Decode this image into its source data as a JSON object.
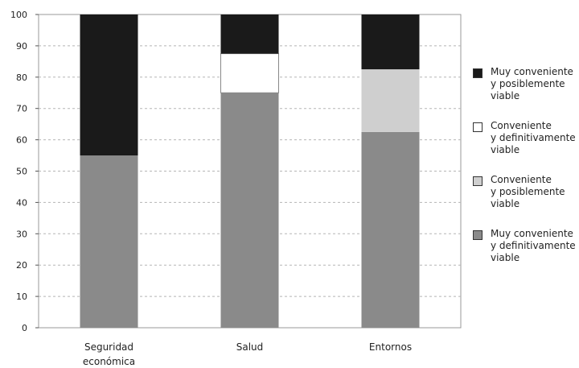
{
  "chart_data": {
    "type": "bar",
    "stacked": true,
    "categories": [
      "Seguridad\neconómica",
      "Salud",
      "Entornos"
    ],
    "ylim": [
      0,
      100
    ],
    "yticks": [
      0,
      10,
      20,
      30,
      40,
      50,
      60,
      70,
      80,
      90,
      100
    ],
    "grid": true,
    "legend_position": "right",
    "series": [
      {
        "name": "Muy conveniente\ny definitivamente\nviable",
        "color": "#8a8a8a",
        "values": [
          55,
          75,
          62.5
        ]
      },
      {
        "name": "Conveniente\ny posiblemente\nviable",
        "color": "#cfcfcf",
        "values": [
          0,
          0,
          20
        ]
      },
      {
        "name": "Conveniente\ny definitivamente\nviable",
        "color": "#ffffff",
        "values": [
          0,
          12.5,
          0
        ]
      },
      {
        "name": "Muy conveniente\ny posiblemente\nviable",
        "color": "#1a1a1a",
        "values": [
          45,
          12.5,
          17.5
        ]
      }
    ],
    "legend_order": [
      3,
      2,
      1,
      0
    ]
  }
}
